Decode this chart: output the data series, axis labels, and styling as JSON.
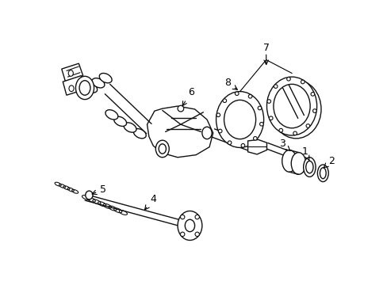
{
  "bg_color": "#ffffff",
  "line_color": "#111111",
  "fig_width": 4.89,
  "fig_height": 3.6,
  "dpi": 100,
  "imgW": 489,
  "imgH": 360
}
